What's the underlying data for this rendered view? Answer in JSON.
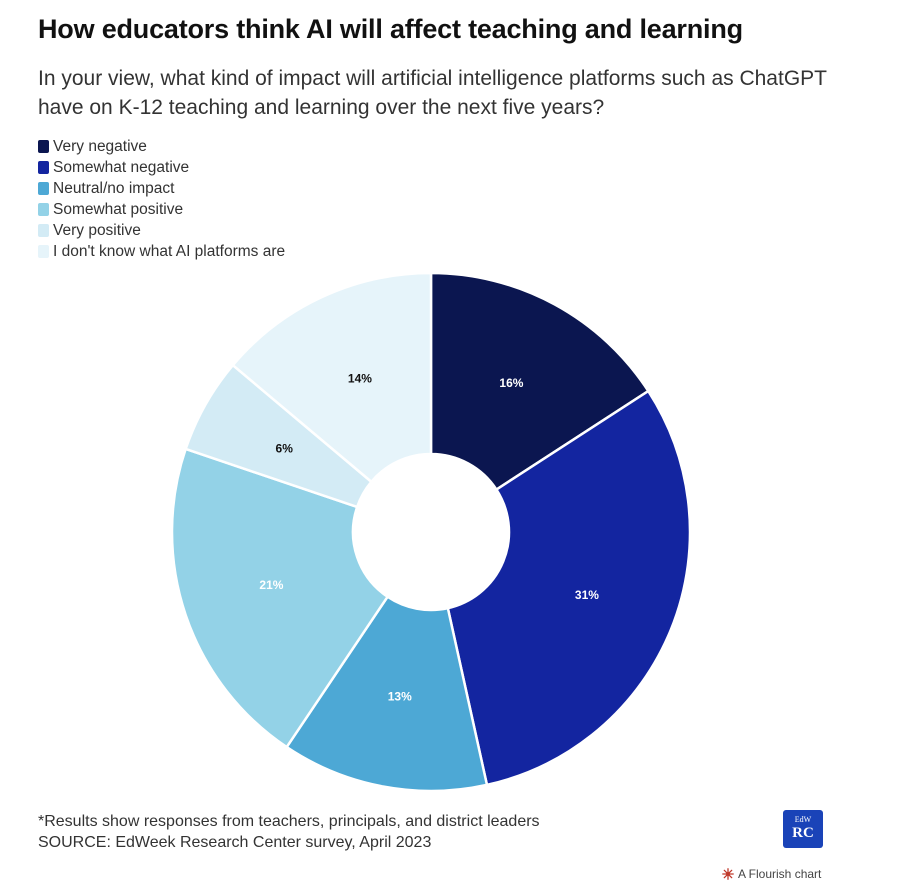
{
  "header": {
    "title": "How educators think AI will affect teaching and learning",
    "subtitle": "In your view, what kind of impact will artificial intelligence platforms such as ChatGPT have on K-12 teaching and learning over the next five years?"
  },
  "chart_data": {
    "type": "pie",
    "donut": true,
    "legend_position": "top-left",
    "categories": [
      "Very negative",
      "Somewhat negative",
      "Neutral/no impact",
      "Somewhat positive",
      "Very positive",
      "I don't know what AI platforms are"
    ],
    "values": [
      16,
      31,
      13,
      21,
      6,
      14
    ],
    "labels": [
      "16%",
      "31%",
      "13%",
      "21%",
      "6%",
      "14%"
    ],
    "colors": [
      "#0b1650",
      "#1325a0",
      "#4da8d5",
      "#93d2e7",
      "#d3ebf5",
      "#e6f4fa"
    ],
    "label_colors": [
      "#ffffff",
      "#ffffff",
      "#ffffff",
      "#ffffff",
      "#111111",
      "#111111"
    ]
  },
  "footer": {
    "note": "*Results show responses from teachers, principals, and district leaders",
    "source": "SOURCE: EdWeek Research Center survey, April 2023",
    "logo_top": "EdW",
    "logo_bottom": "RC",
    "flourish_label": "A Flourish chart",
    "flourish_icon": "flourish-burst-icon"
  }
}
